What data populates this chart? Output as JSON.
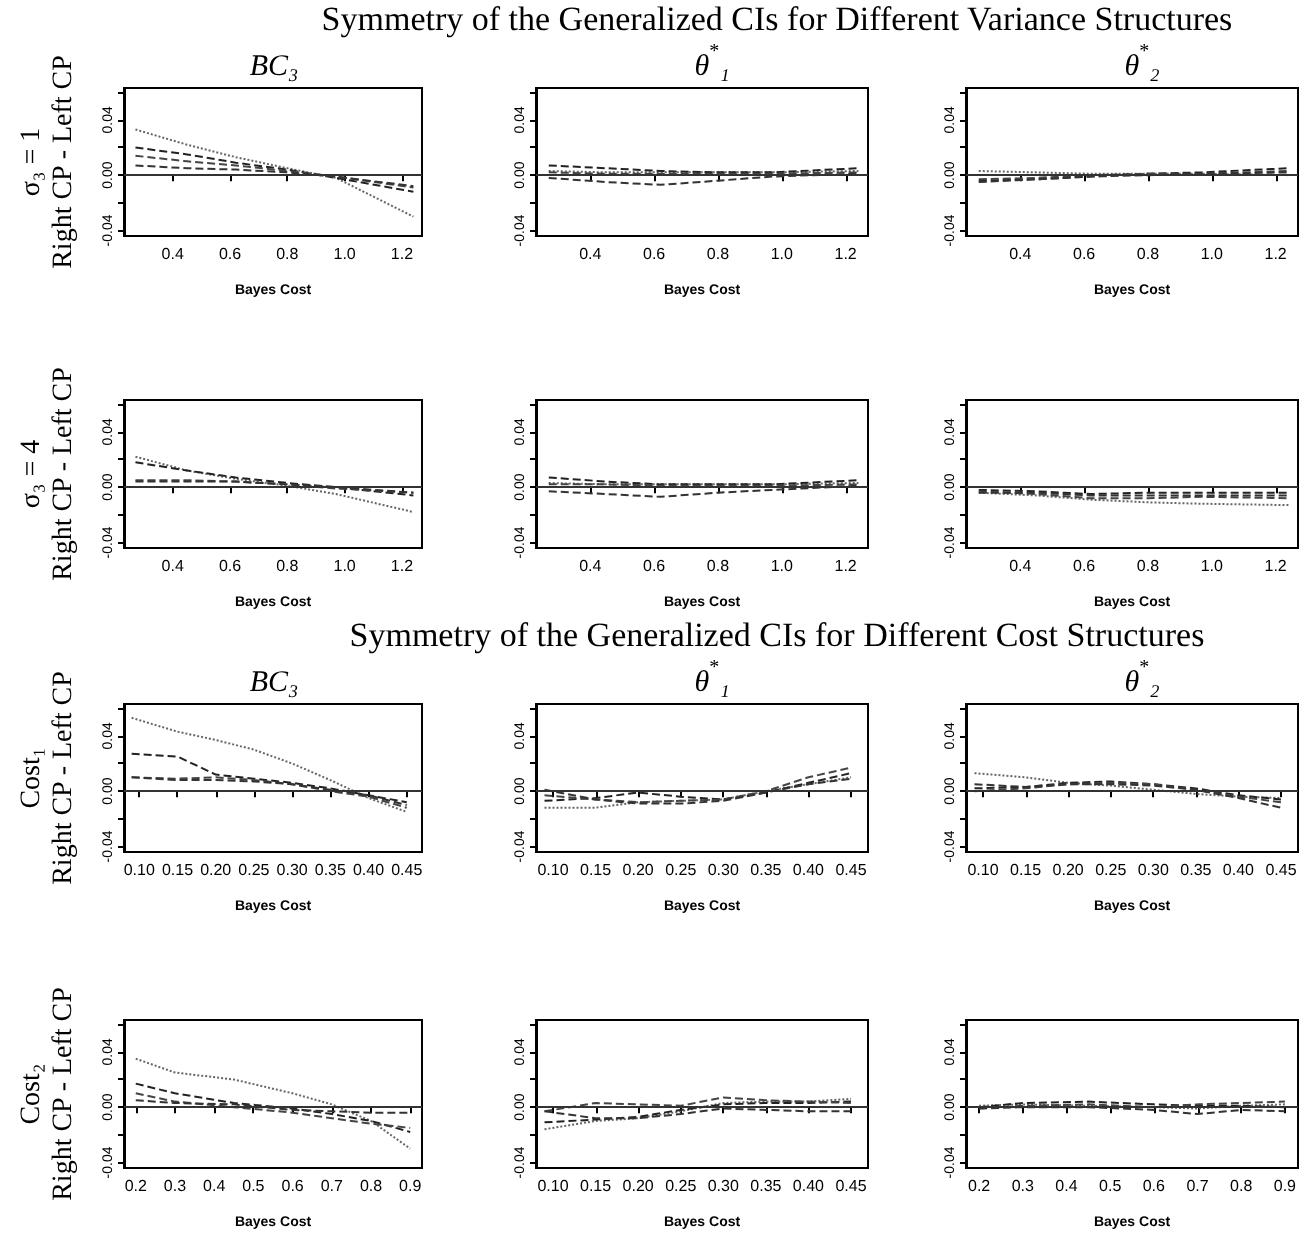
{
  "chart_data": [
    {
      "type": "line",
      "title": "BC₃",
      "annotations": [
        "Symmetry of the Generalized CIs for Different Variance Structures"
      ],
      "ylabel": "σ₃ = 1\nRight CP - Left CP",
      "xlabel": "Bayes Cost",
      "x": [
        0.27,
        0.45,
        0.62,
        0.8,
        0.97,
        1.24
      ],
      "xlim": [
        0.23,
        1.27
      ],
      "xticks": [
        0.4,
        0.6,
        0.8,
        {
          "value": 1,
          "label": "1.0"
        },
        1.2
      ],
      "ylim": [
        -0.044,
        0.063
      ],
      "yticks": [
        {
          "value": -0.04,
          "label": "-0.04"
        },
        {
          "value": -0.02,
          "label": null
        },
        {
          "value": 0,
          "label": "0.00"
        },
        {
          "value": 0.02,
          "label": null
        },
        {
          "value": 0.04,
          "label": "0.04"
        },
        {
          "value": 0.06,
          "label": null
        }
      ],
      "ref_lines": [
        {
          "axis": "y",
          "value": 0,
          "color": "#333333"
        }
      ],
      "series": [
        {
          "color": "#666666",
          "line_style": "dotted",
          "values": [
            0.033,
            0.022,
            0.013,
            0.005,
            -0.002,
            -0.03
          ]
        },
        {
          "color": "#222222",
          "line_style": "dashed",
          "values": [
            0.02,
            0.015,
            0.009,
            0.004,
            -0.002,
            -0.012
          ]
        },
        {
          "color": "#444444",
          "line_style": "dashed",
          "values": [
            0.014,
            0.01,
            0.007,
            0.003,
            -0.001,
            -0.009
          ]
        },
        {
          "color": "#333333",
          "line_style": "dashed",
          "values": [
            0.007,
            0.005,
            0.004,
            0.002,
            -0.001,
            -0.008
          ]
        }
      ]
    },
    {
      "type": "line",
      "title": "θ$^{*}$₁",
      "xlabel": "Bayes Cost",
      "x": [
        0.27,
        0.45,
        0.62,
        0.8,
        0.97,
        1.24
      ],
      "xlim": [
        0.23,
        1.27
      ],
      "xticks": [
        0.4,
        0.6,
        0.8,
        {
          "value": 1,
          "label": "1.0"
        },
        1.2
      ],
      "ylim": [
        -0.044,
        0.063
      ],
      "yticks": [
        {
          "value": -0.04,
          "label": "-0.04"
        },
        {
          "value": -0.02,
          "label": null
        },
        {
          "value": 0,
          "label": "0.00"
        },
        {
          "value": 0.02,
          "label": null
        },
        {
          "value": 0.04,
          "label": "0.04"
        },
        {
          "value": 0.06,
          "label": null
        }
      ],
      "ref_lines": [
        {
          "axis": "y",
          "value": 0,
          "color": "#333333"
        }
      ],
      "series": [
        {
          "color": "#666666",
          "line_style": "dotted",
          "values": [
            0.003,
            0.002,
            0.002,
            0.002,
            0.002,
            0.003
          ]
        },
        {
          "color": "#222222",
          "line_style": "dashed",
          "values": [
            0.007,
            0.005,
            0.003,
            0.002,
            0.002,
            0.005
          ]
        },
        {
          "color": "#444444",
          "line_style": "dashed",
          "values": [
            0.002,
            0.001,
            0.001,
            0.001,
            0.001,
            0.002
          ]
        },
        {
          "color": "#333333",
          "line_style": "dashed",
          "values": [
            -0.002,
            -0.005,
            -0.007,
            -0.004,
            -0.001,
            0.001
          ]
        }
      ]
    },
    {
      "type": "line",
      "title": "θ$^{*}$₂",
      "xlabel": "Bayes Cost",
      "x": [
        0.27,
        0.45,
        0.62,
        0.8,
        0.97,
        1.24
      ],
      "xlim": [
        0.23,
        1.27
      ],
      "xticks": [
        0.4,
        0.6,
        0.8,
        {
          "value": 1,
          "label": "1.0"
        },
        1.2
      ],
      "ylim": [
        -0.044,
        0.063
      ],
      "yticks": [
        {
          "value": -0.04,
          "label": "-0.04"
        },
        {
          "value": -0.02,
          "label": null
        },
        {
          "value": 0,
          "label": "0.00"
        },
        {
          "value": 0.02,
          "label": null
        },
        {
          "value": 0.04,
          "label": "0.04"
        },
        {
          "value": 0.06,
          "label": null
        }
      ],
      "ref_lines": [
        {
          "axis": "y",
          "value": 0,
          "color": "#333333"
        }
      ],
      "series": [
        {
          "color": "#666666",
          "line_style": "dotted",
          "values": [
            0.003,
            0.002,
            0.001,
            0.001,
            0.001,
            0
          ]
        },
        {
          "color": "#222222",
          "line_style": "dashed",
          "values": [
            -0.004,
            -0.003,
            -0.001,
            0.001,
            0.002,
            0.005
          ]
        },
        {
          "color": "#444444",
          "line_style": "dashed",
          "values": [
            -0.003,
            -0.002,
            0,
            0.001,
            0.001,
            0.003
          ]
        },
        {
          "color": "#333333",
          "line_style": "dashed",
          "values": [
            -0.005,
            -0.003,
            -0.001,
            0,
            0.001,
            0.002
          ]
        }
      ]
    },
    {
      "type": "line",
      "ylabel": "σ₃ = 4\nRight CP - Left CP",
      "xlabel": "Bayes Cost",
      "x": [
        0.27,
        0.45,
        0.62,
        0.8,
        0.97,
        1.24
      ],
      "xlim": [
        0.23,
        1.27
      ],
      "xticks": [
        0.4,
        0.6,
        0.8,
        {
          "value": 1,
          "label": "1.0"
        },
        1.2
      ],
      "ylim": [
        -0.044,
        0.063
      ],
      "yticks": [
        {
          "value": -0.04,
          "label": "-0.04"
        },
        {
          "value": -0.02,
          "label": null
        },
        {
          "value": 0,
          "label": "0.00"
        },
        {
          "value": 0.02,
          "label": null
        },
        {
          "value": 0.04,
          "label": "0.04"
        },
        {
          "value": 0.06,
          "label": null
        }
      ],
      "ref_lines": [
        {
          "axis": "y",
          "value": 0,
          "color": "#333333"
        }
      ],
      "series": [
        {
          "color": "#666666",
          "line_style": "dotted",
          "values": [
            0.022,
            0.012,
            0.006,
            0.001,
            -0.005,
            -0.018
          ]
        },
        {
          "color": "#222222",
          "line_style": "dashed",
          "values": [
            0.018,
            0.012,
            0.007,
            0.003,
            0,
            -0.006
          ]
        },
        {
          "color": "#444444",
          "line_style": "dashed",
          "values": [
            0.005,
            0.005,
            0.004,
            0.002,
            -0.001,
            -0.004
          ]
        },
        {
          "color": "#333333",
          "line_style": "dashed",
          "values": [
            0.004,
            0.004,
            0.004,
            0.002,
            0,
            -0.004
          ]
        }
      ]
    },
    {
      "type": "line",
      "xlabel": "Bayes Cost",
      "x": [
        0.27,
        0.45,
        0.62,
        0.8,
        0.97,
        1.24
      ],
      "xlim": [
        0.23,
        1.27
      ],
      "xticks": [
        0.4,
        0.6,
        0.8,
        {
          "value": 1,
          "label": "1.0"
        },
        1.2
      ],
      "ylim": [
        -0.044,
        0.063
      ],
      "yticks": [
        {
          "value": -0.04,
          "label": "-0.04"
        },
        {
          "value": -0.02,
          "label": null
        },
        {
          "value": 0,
          "label": "0.00"
        },
        {
          "value": 0.02,
          "label": null
        },
        {
          "value": 0.04,
          "label": "0.04"
        },
        {
          "value": 0.06,
          "label": null
        }
      ],
      "ref_lines": [
        {
          "axis": "y",
          "value": 0,
          "color": "#333333"
        }
      ],
      "series": [
        {
          "color": "#666666",
          "line_style": "dotted",
          "values": [
            0.003,
            0.002,
            0.002,
            0.002,
            0.002,
            0.003
          ]
        },
        {
          "color": "#222222",
          "line_style": "dashed",
          "values": [
            0.007,
            0.004,
            0.002,
            0.002,
            0.002,
            0.005
          ]
        },
        {
          "color": "#444444",
          "line_style": "dashed",
          "values": [
            0.002,
            0.002,
            0.001,
            0.001,
            0.001,
            0.002
          ]
        },
        {
          "color": "#333333",
          "line_style": "dashed",
          "values": [
            -0.003,
            -0.005,
            -0.007,
            -0.004,
            -0.002,
            0.001
          ]
        }
      ]
    },
    {
      "type": "line",
      "xlabel": "Bayes Cost",
      "x": [
        0.27,
        0.45,
        0.62,
        0.8,
        0.97,
        1.24
      ],
      "xlim": [
        0.23,
        1.27
      ],
      "xticks": [
        0.4,
        0.6,
        0.8,
        {
          "value": 1,
          "label": "1.0"
        },
        1.2
      ],
      "ylim": [
        -0.044,
        0.063
      ],
      "yticks": [
        {
          "value": -0.04,
          "label": "-0.04"
        },
        {
          "value": -0.02,
          "label": null
        },
        {
          "value": 0,
          "label": "0.00"
        },
        {
          "value": 0.02,
          "label": null
        },
        {
          "value": 0.04,
          "label": "0.04"
        },
        {
          "value": 0.06,
          "label": null
        }
      ],
      "ref_lines": [
        {
          "axis": "y",
          "value": 0,
          "color": "#333333"
        }
      ],
      "series": [
        {
          "color": "#666666",
          "line_style": "dotted",
          "values": [
            -0.004,
            -0.006,
            -0.009,
            -0.011,
            -0.012,
            -0.013
          ]
        },
        {
          "color": "#222222",
          "line_style": "dashed",
          "values": [
            -0.002,
            -0.003,
            -0.005,
            -0.004,
            -0.004,
            -0.004
          ]
        },
        {
          "color": "#444444",
          "line_style": "dashed",
          "values": [
            -0.003,
            -0.005,
            -0.008,
            -0.008,
            -0.007,
            -0.008
          ]
        },
        {
          "color": "#333333",
          "line_style": "dashed",
          "values": [
            -0.004,
            -0.004,
            -0.006,
            -0.006,
            -0.006,
            -0.006
          ]
        }
      ]
    },
    {
      "type": "line",
      "title": "BC₃",
      "annotations": [
        "Symmetry of the Generalized CIs for Different Cost Structures"
      ],
      "ylabel": "Cost₁\nRight CP - Left CP",
      "xlabel": "Bayes Cost",
      "x": [
        0.09,
        0.15,
        0.2,
        0.25,
        0.3,
        0.35,
        0.4,
        0.45
      ],
      "xlim": [
        0.08,
        0.47
      ],
      "xticks": [
        {
          "value": 0.1,
          "label": "0.10"
        },
        0.15,
        {
          "value": 0.2,
          "label": "0.20"
        },
        0.25,
        {
          "value": 0.3,
          "label": "0.30"
        },
        0.35,
        {
          "value": 0.4,
          "label": "0.40"
        },
        0.45
      ],
      "ylim": [
        -0.044,
        0.063
      ],
      "yticks": [
        {
          "value": -0.04,
          "label": "-0.04"
        },
        {
          "value": -0.02,
          "label": null
        },
        {
          "value": 0,
          "label": "0.00"
        },
        {
          "value": 0.02,
          "label": null
        },
        {
          "value": 0.04,
          "label": "0.04"
        },
        {
          "value": 0.06,
          "label": null
        }
      ],
      "ref_lines": [
        {
          "axis": "y",
          "value": 0,
          "color": "#333333"
        }
      ],
      "series": [
        {
          "color": "#666666",
          "line_style": "dotted",
          "values": [
            0.053,
            0.043,
            0.037,
            0.03,
            0.02,
            0.008,
            -0.005,
            -0.015
          ]
        },
        {
          "color": "#222222",
          "line_style": "dashed",
          "values": [
            0.027,
            0.025,
            0.012,
            0.009,
            0.006,
            0.002,
            -0.003,
            -0.008
          ]
        },
        {
          "color": "#444444",
          "line_style": "dashed",
          "values": [
            0.01,
            0.009,
            0.01,
            0.008,
            0.005,
            0,
            -0.004,
            -0.012
          ]
        },
        {
          "color": "#333333",
          "line_style": "dashed",
          "values": [
            0.01,
            0.008,
            0.008,
            0.007,
            0.005,
            0.001,
            -0.003,
            -0.01
          ]
        }
      ]
    },
    {
      "type": "line",
      "title": "θ$^{*}$₁",
      "xlabel": "Bayes Cost",
      "x": [
        0.09,
        0.15,
        0.2,
        0.25,
        0.3,
        0.35,
        0.4,
        0.45
      ],
      "xlim": [
        0.08,
        0.47
      ],
      "xticks": [
        {
          "value": 0.1,
          "label": "0.10"
        },
        0.15,
        {
          "value": 0.2,
          "label": "0.20"
        },
        0.25,
        {
          "value": 0.3,
          "label": "0.30"
        },
        0.35,
        {
          "value": 0.4,
          "label": "0.40"
        },
        0.45
      ],
      "ylim": [
        -0.044,
        0.063
      ],
      "yticks": [
        {
          "value": -0.04,
          "label": "-0.04"
        },
        {
          "value": -0.02,
          "label": null
        },
        {
          "value": 0,
          "label": "0.00"
        },
        {
          "value": 0.02,
          "label": null
        },
        {
          "value": 0.04,
          "label": "0.04"
        },
        {
          "value": 0.06,
          "label": null
        }
      ],
      "ref_lines": [
        {
          "axis": "y",
          "value": 0,
          "color": "#333333"
        }
      ],
      "series": [
        {
          "color": "#666666",
          "line_style": "dotted",
          "values": [
            -0.012,
            -0.012,
            -0.008,
            -0.007,
            -0.006,
            0,
            0.005,
            0.01
          ]
        },
        {
          "color": "#222222",
          "line_style": "dashed",
          "values": [
            -0.007,
            -0.005,
            -0.001,
            -0.004,
            -0.006,
            -0.001,
            0.006,
            0.013
          ]
        },
        {
          "color": "#444444",
          "line_style": "dashed",
          "values": [
            -0.003,
            -0.006,
            -0.008,
            -0.007,
            -0.006,
            0,
            0.01,
            0.017
          ]
        },
        {
          "color": "#333333",
          "line_style": "dashed",
          "values": [
            0.001,
            -0.006,
            -0.009,
            -0.009,
            -0.007,
            -0.001,
            0.005,
            0.009
          ]
        }
      ]
    },
    {
      "type": "line",
      "title": "θ$^{*}$₂",
      "xlabel": "Bayes Cost",
      "x": [
        0.09,
        0.15,
        0.2,
        0.25,
        0.3,
        0.35,
        0.4,
        0.45
      ],
      "xlim": [
        0.08,
        0.47
      ],
      "xticks": [
        {
          "value": 0.1,
          "label": "0.10"
        },
        0.15,
        {
          "value": 0.2,
          "label": "0.20"
        },
        0.25,
        {
          "value": 0.3,
          "label": "0.30"
        },
        0.35,
        {
          "value": 0.4,
          "label": "0.40"
        },
        0.45
      ],
      "ylim": [
        -0.044,
        0.063
      ],
      "yticks": [
        {
          "value": -0.04,
          "label": "-0.04"
        },
        {
          "value": -0.02,
          "label": null
        },
        {
          "value": 0,
          "label": "0.00"
        },
        {
          "value": 0.02,
          "label": null
        },
        {
          "value": 0.04,
          "label": "0.04"
        },
        {
          "value": 0.06,
          "label": null
        }
      ],
      "ref_lines": [
        {
          "axis": "y",
          "value": 0,
          "color": "#333333"
        }
      ],
      "series": [
        {
          "color": "#666666",
          "line_style": "dotted",
          "values": [
            0.013,
            0.01,
            0.006,
            0.004,
            0.001,
            -0.002,
            -0.004,
            -0.005
          ]
        },
        {
          "color": "#222222",
          "line_style": "dashed",
          "values": [
            0.002,
            0.003,
            0.006,
            0.007,
            0.005,
            0.002,
            -0.003,
            -0.006
          ]
        },
        {
          "color": "#444444",
          "line_style": "dashed",
          "values": [
            0,
            0.002,
            0.005,
            0.006,
            0.005,
            0.001,
            -0.004,
            -0.008
          ]
        },
        {
          "color": "#333333",
          "line_style": "dashed",
          "values": [
            0.005,
            0.003,
            0.005,
            0.005,
            0.004,
            0.001,
            -0.005,
            -0.012
          ]
        }
      ]
    },
    {
      "type": "line",
      "ylabel": "Cost₂\nRight CP - Left CP",
      "xlabel": "Bayes Cost",
      "x": [
        0.2,
        0.3,
        0.45,
        0.6,
        0.7,
        0.8,
        0.9
      ],
      "xlim": [
        0.17,
        0.93
      ],
      "xticks": [
        0.2,
        0.3,
        0.4,
        0.5,
        0.6,
        0.7,
        0.8,
        0.9
      ],
      "ylim": [
        -0.044,
        0.063
      ],
      "yticks": [
        {
          "value": -0.04,
          "label": "-0.04"
        },
        {
          "value": -0.02,
          "label": null
        },
        {
          "value": 0,
          "label": "0.00"
        },
        {
          "value": 0.02,
          "label": null
        },
        {
          "value": 0.04,
          "label": "0.04"
        },
        {
          "value": 0.06,
          "label": null
        }
      ],
      "ref_lines": [
        {
          "axis": "y",
          "value": 0,
          "color": "#333333"
        }
      ],
      "series": [
        {
          "color": "#666666",
          "line_style": "dotted",
          "values": [
            0.035,
            0.025,
            0.02,
            0.01,
            0.002,
            -0.01,
            -0.03
          ]
        },
        {
          "color": "#222222",
          "line_style": "dashed",
          "values": [
            0.017,
            0.01,
            0.003,
            -0.001,
            -0.005,
            -0.01,
            -0.018
          ]
        },
        {
          "color": "#444444",
          "line_style": "dashed",
          "values": [
            0.01,
            0.004,
            0,
            -0.004,
            -0.008,
            -0.012,
            -0.015
          ]
        },
        {
          "color": "#333333",
          "line_style": "dashed",
          "values": [
            0.005,
            0.003,
            0.002,
            -0.002,
            -0.003,
            -0.004,
            -0.004
          ]
        }
      ]
    },
    {
      "type": "line",
      "xlabel": "Bayes Cost",
      "x": [
        0.09,
        0.15,
        0.2,
        0.25,
        0.3,
        0.35,
        0.4,
        0.45
      ],
      "xlim": [
        0.08,
        0.47
      ],
      "xticks": [
        {
          "value": 0.1,
          "label": "0.10"
        },
        0.15,
        {
          "value": 0.2,
          "label": "0.20"
        },
        0.25,
        {
          "value": 0.3,
          "label": "0.30"
        },
        0.35,
        {
          "value": 0.4,
          "label": "0.40"
        },
        0.45
      ],
      "ylim": [
        -0.044,
        0.063
      ],
      "yticks": [
        {
          "value": -0.04,
          "label": "-0.04"
        },
        {
          "value": -0.02,
          "label": null
        },
        {
          "value": 0,
          "label": "0.00"
        },
        {
          "value": 0.02,
          "label": null
        },
        {
          "value": 0.04,
          "label": "0.04"
        },
        {
          "value": 0.06,
          "label": null
        }
      ],
      "ref_lines": [
        {
          "axis": "y",
          "value": 0,
          "color": "#333333"
        }
      ],
      "series": [
        {
          "color": "#666666",
          "line_style": "dotted",
          "values": [
            -0.016,
            -0.01,
            -0.008,
            -0.003,
            0.003,
            0.004,
            0.004,
            0.006
          ]
        },
        {
          "color": "#222222",
          "line_style": "dashed",
          "values": [
            -0.011,
            -0.009,
            -0.007,
            -0.002,
            0.002,
            0.003,
            0.003,
            0.004
          ]
        },
        {
          "color": "#444444",
          "line_style": "dashed",
          "values": [
            -0.003,
            0.003,
            0.002,
            0.001,
            0.007,
            0.005,
            0.004,
            0.003
          ]
        },
        {
          "color": "#333333",
          "line_style": "dashed",
          "values": [
            -0.003,
            -0.008,
            -0.008,
            -0.005,
            -0.001,
            -0.002,
            -0.003,
            -0.003
          ]
        }
      ]
    },
    {
      "type": "line",
      "xlabel": "Bayes Cost",
      "x": [
        0.2,
        0.3,
        0.45,
        0.6,
        0.7,
        0.8,
        0.9
      ],
      "xlim": [
        0.17,
        0.93
      ],
      "xticks": [
        0.2,
        0.3,
        0.4,
        0.5,
        0.6,
        0.7,
        0.8,
        0.9
      ],
      "ylim": [
        -0.044,
        0.063
      ],
      "yticks": [
        {
          "value": -0.04,
          "label": "-0.04"
        },
        {
          "value": -0.02,
          "label": null
        },
        {
          "value": 0,
          "label": "0.00"
        },
        {
          "value": 0.02,
          "label": null
        },
        {
          "value": 0.04,
          "label": "0.04"
        },
        {
          "value": 0.06,
          "label": null
        }
      ],
      "ref_lines": [
        {
          "axis": "y",
          "value": 0,
          "color": "#333333"
        }
      ],
      "series": [
        {
          "color": "#666666",
          "line_style": "dotted",
          "values": [
            0.001,
            0.002,
            0.001,
            0,
            -0.001,
            0.001,
            0.002
          ]
        },
        {
          "color": "#222222",
          "line_style": "dashed",
          "values": [
            0,
            0.003,
            0.004,
            0.002,
            0.001,
            0.001,
            0
          ]
        },
        {
          "color": "#444444",
          "line_style": "dashed",
          "values": [
            -0.001,
            0.001,
            0.002,
            0,
            0.002,
            0.003,
            0.004
          ]
        },
        {
          "color": "#333333",
          "line_style": "dashed",
          "values": [
            -0.001,
            0,
            0,
            -0.002,
            -0.005,
            -0.002,
            -0.003
          ]
        }
      ]
    }
  ]
}
